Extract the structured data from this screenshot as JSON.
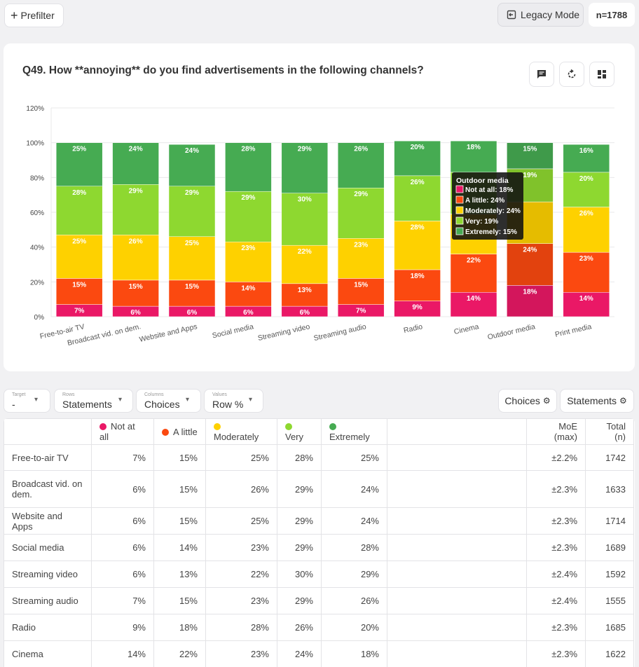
{
  "header": {
    "prefilter_label": "Prefilter",
    "legacy_label": "Legacy Mode",
    "n_label": "n=1788"
  },
  "chart_title": "Q49. How **annoying** do you find advertisements in the following channels?",
  "colors": {
    "Not at all": "#ea1866",
    "A little": "#fb4910",
    "Moderately": "#fed100",
    "Very": "#8ed830",
    "Extremely": "#46ab52"
  },
  "chart_data": {
    "type": "bar",
    "stacked": true,
    "ylim": [
      0,
      120
    ],
    "yticks": [
      "0%",
      "20%",
      "40%",
      "60%",
      "80%",
      "100%",
      "120%"
    ],
    "categories": [
      "Free-to-air TV",
      "Broadcast vid. on dem.",
      "Website and Apps",
      "Social media",
      "Streaming video",
      "Streaming audio",
      "Radio",
      "Cinema",
      "Outdoor media",
      "Print media"
    ],
    "series": [
      {
        "name": "Not at all",
        "values": [
          7,
          6,
          6,
          6,
          6,
          7,
          9,
          14,
          18,
          14
        ]
      },
      {
        "name": "A little",
        "values": [
          15,
          15,
          15,
          14,
          13,
          15,
          18,
          22,
          24,
          23
        ]
      },
      {
        "name": "Moderately",
        "values": [
          25,
          26,
          25,
          23,
          22,
          23,
          28,
          23,
          24,
          26
        ]
      },
      {
        "name": "Very",
        "values": [
          28,
          29,
          29,
          29,
          30,
          29,
          26,
          24,
          19,
          20
        ]
      },
      {
        "name": "Extremely",
        "values": [
          25,
          24,
          24,
          28,
          29,
          26,
          20,
          18,
          15,
          16
        ]
      }
    ],
    "hidden_labels": {
      "7": [
        2,
        3
      ],
      "8": [
        2
      ]
    },
    "tooltip": {
      "category_index": 8,
      "title": "Outdoor media",
      "lines": [
        "Not at all: 18%",
        "A little: 24%",
        "Moderately: 24%",
        "Very: 19%",
        "Extremely: 15%"
      ]
    }
  },
  "controls": {
    "target": {
      "small": "Target",
      "value": "-"
    },
    "rows": {
      "small": "Rows",
      "value": "Statements"
    },
    "columns": {
      "small": "Columns",
      "value": "Choices"
    },
    "values": {
      "small": "Values",
      "value": "Row %"
    },
    "choices_btn": "Choices",
    "statements_btn": "Statements"
  },
  "table": {
    "headers": [
      "Not at all",
      "A little",
      "Moderately",
      "Very",
      "Extremely"
    ],
    "moe_header": "MoE (max)",
    "total_header": "Total (n)",
    "rows": [
      {
        "label": "Free-to-air TV",
        "values": [
          "7%",
          "15%",
          "25%",
          "28%",
          "25%"
        ],
        "moe": "±2.2%",
        "total": "1742"
      },
      {
        "label": "Broadcast vid. on dem.",
        "values": [
          "6%",
          "15%",
          "26%",
          "29%",
          "24%"
        ],
        "moe": "±2.3%",
        "total": "1633"
      },
      {
        "label": "Website and Apps",
        "values": [
          "6%",
          "15%",
          "25%",
          "29%",
          "24%"
        ],
        "moe": "±2.3%",
        "total": "1714"
      },
      {
        "label": "Social media",
        "values": [
          "6%",
          "14%",
          "23%",
          "29%",
          "28%"
        ],
        "moe": "±2.3%",
        "total": "1689"
      },
      {
        "label": "Streaming video",
        "values": [
          "6%",
          "13%",
          "22%",
          "30%",
          "29%"
        ],
        "moe": "±2.4%",
        "total": "1592"
      },
      {
        "label": "Streaming audio",
        "values": [
          "7%",
          "15%",
          "23%",
          "29%",
          "26%"
        ],
        "moe": "±2.4%",
        "total": "1555"
      },
      {
        "label": "Radio",
        "values": [
          "9%",
          "18%",
          "28%",
          "26%",
          "20%"
        ],
        "moe": "±2.3%",
        "total": "1685"
      },
      {
        "label": "Cinema",
        "values": [
          "14%",
          "22%",
          "23%",
          "24%",
          "18%"
        ],
        "moe": "±2.3%",
        "total": "1622"
      }
    ]
  }
}
